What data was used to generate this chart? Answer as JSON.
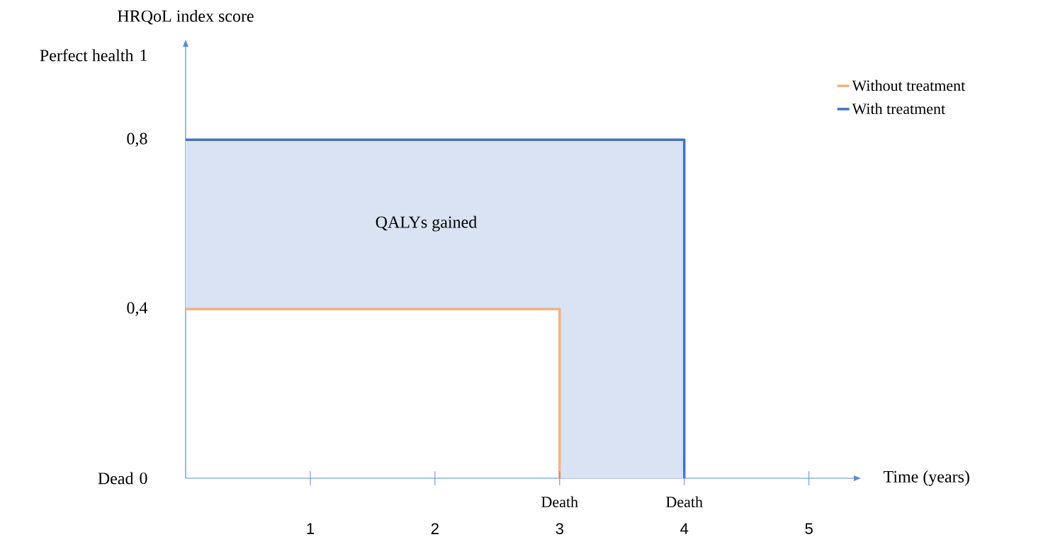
{
  "chart_data": {
    "type": "step",
    "ylabel": "HRQoL index score",
    "xlabel": "Time (years)",
    "xlim": [
      0,
      5.36
    ],
    "ylim": [
      0,
      1.02
    ],
    "xticks": [
      1,
      2,
      3,
      4,
      5
    ],
    "yticks": [
      0,
      {
        "value": 0.4,
        "label": "0,4"
      },
      {
        "value": 0.8,
        "label": "0,8"
      },
      1
    ],
    "series": [
      {
        "name": "Without treatment",
        "color": "#f4b183",
        "x": [
          0,
          3
        ],
        "values": [
          0.4,
          0
        ]
      },
      {
        "name": "With treatment",
        "color": "#4472c4",
        "x": [
          0,
          3,
          4
        ],
        "values": [
          0.8,
          0.8,
          0
        ],
        "lower": [
          0.4,
          0,
          0
        ],
        "upper": [
          0.8,
          0.8,
          0
        ]
      }
    ],
    "annotations": [
      "Perfect health",
      "Dead",
      {
        "text": "Death",
        "x": 3,
        "y": 0
      },
      {
        "text": "Death",
        "x": 4,
        "y": 0
      },
      "QALYs gained"
    ],
    "legend": "top right",
    "grid": false,
    "marker": "none",
    "line_style": "solid"
  }
}
